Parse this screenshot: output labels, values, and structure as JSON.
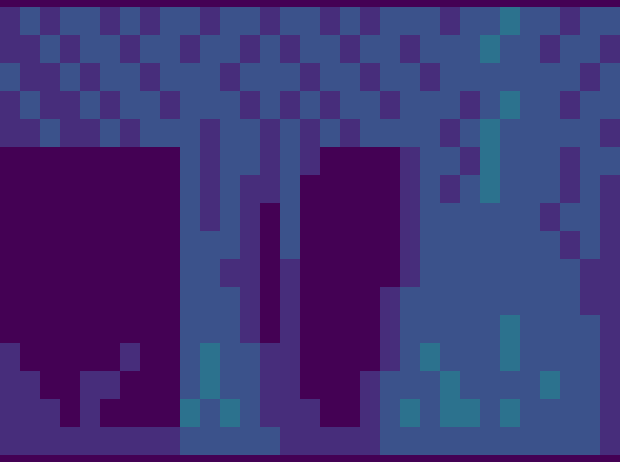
{
  "chart_data": {
    "type": "heatmap",
    "tick_labels": false,
    "color": "viridis",
    "zlim": [
      0,
      8
    ],
    "cells": [
      [
        1,
        2,
        1,
        2,
        2,
        1,
        2,
        1,
        2,
        2,
        1,
        2,
        2,
        1,
        2,
        2,
        1,
        2,
        1,
        2,
        2,
        2,
        1,
        2,
        2,
        3,
        2,
        2,
        1,
        2,
        2
      ],
      [
        1,
        1,
        2,
        1,
        2,
        2,
        1,
        2,
        2,
        1,
        2,
        2,
        1,
        2,
        1,
        2,
        2,
        1,
        2,
        2,
        1,
        2,
        2,
        2,
        3,
        2,
        2,
        1,
        2,
        2,
        1
      ],
      [
        2,
        1,
        1,
        2,
        1,
        2,
        2,
        1,
        2,
        2,
        2,
        1,
        2,
        2,
        2,
        1,
        2,
        2,
        1,
        2,
        2,
        1,
        2,
        2,
        2,
        2,
        2,
        2,
        2,
        1,
        2
      ],
      [
        1,
        2,
        1,
        1,
        2,
        1,
        2,
        2,
        1,
        2,
        2,
        2,
        1,
        2,
        1,
        2,
        1,
        2,
        2,
        1,
        2,
        2,
        2,
        1,
        2,
        3,
        2,
        2,
        1,
        2,
        2
      ],
      [
        1,
        1,
        2,
        1,
        1,
        2,
        1,
        2,
        2,
        2,
        1,
        2,
        2,
        1,
        2,
        1,
        2,
        1,
        2,
        2,
        2,
        2,
        1,
        2,
        3,
        2,
        2,
        2,
        2,
        2,
        1
      ],
      [
        0,
        0,
        0,
        0,
        0,
        0,
        0,
        0,
        0,
        2,
        1,
        2,
        2,
        1,
        2,
        1,
        0,
        0,
        0,
        0,
        1,
        2,
        2,
        1,
        3,
        2,
        2,
        2,
        1,
        2,
        2
      ],
      [
        0,
        0,
        0,
        0,
        0,
        0,
        0,
        0,
        0,
        2,
        1,
        2,
        1,
        1,
        2,
        0,
        0,
        0,
        0,
        0,
        1,
        2,
        1,
        2,
        3,
        2,
        2,
        2,
        1,
        2,
        1
      ],
      [
        0,
        0,
        0,
        0,
        0,
        0,
        0,
        0,
        0,
        2,
        1,
        2,
        1,
        0,
        2,
        0,
        0,
        0,
        0,
        0,
        1,
        2,
        2,
        2,
        2,
        2,
        2,
        1,
        2,
        2,
        1
      ],
      [
        0,
        0,
        0,
        0,
        0,
        0,
        0,
        0,
        0,
        2,
        2,
        2,
        1,
        0,
        2,
        0,
        0,
        0,
        0,
        0,
        1,
        2,
        2,
        2,
        2,
        2,
        2,
        2,
        1,
        2,
        1
      ],
      [
        0,
        0,
        0,
        0,
        0,
        0,
        0,
        0,
        0,
        2,
        2,
        1,
        1,
        0,
        1,
        0,
        0,
        0,
        0,
        0,
        1,
        2,
        2,
        2,
        2,
        2,
        2,
        2,
        2,
        1,
        1
      ],
      [
        0,
        0,
        0,
        0,
        0,
        0,
        0,
        0,
        0,
        2,
        2,
        2,
        1,
        0,
        1,
        0,
        0,
        0,
        0,
        1,
        2,
        2,
        2,
        2,
        2,
        2,
        2,
        2,
        2,
        1,
        1
      ],
      [
        0,
        0,
        0,
        0,
        0,
        0,
        0,
        0,
        0,
        2,
        2,
        2,
        1,
        0,
        1,
        0,
        0,
        0,
        0,
        1,
        2,
        2,
        2,
        2,
        2,
        3,
        2,
        2,
        2,
        2,
        1
      ],
      [
        1,
        0,
        0,
        0,
        0,
        0,
        1,
        0,
        0,
        2,
        3,
        2,
        2,
        1,
        1,
        0,
        0,
        0,
        0,
        1,
        2,
        3,
        2,
        2,
        2,
        3,
        2,
        2,
        2,
        2,
        1
      ],
      [
        1,
        1,
        0,
        0,
        1,
        1,
        0,
        0,
        0,
        2,
        3,
        2,
        2,
        1,
        1,
        0,
        0,
        0,
        1,
        2,
        2,
        2,
        3,
        2,
        2,
        2,
        2,
        3,
        2,
        2,
        1
      ],
      [
        1,
        1,
        1,
        0,
        1,
        0,
        0,
        0,
        0,
        3,
        2,
        3,
        2,
        1,
        1,
        1,
        0,
        0,
        1,
        2,
        3,
        2,
        3,
        3,
        2,
        3,
        2,
        2,
        2,
        2,
        1
      ],
      [
        1,
        1,
        1,
        1,
        1,
        1,
        1,
        1,
        1,
        2,
        2,
        2,
        2,
        2,
        1,
        1,
        1,
        1,
        1,
        2,
        2,
        2,
        2,
        2,
        2,
        2,
        2,
        2,
        2,
        2,
        1
      ]
    ]
  }
}
